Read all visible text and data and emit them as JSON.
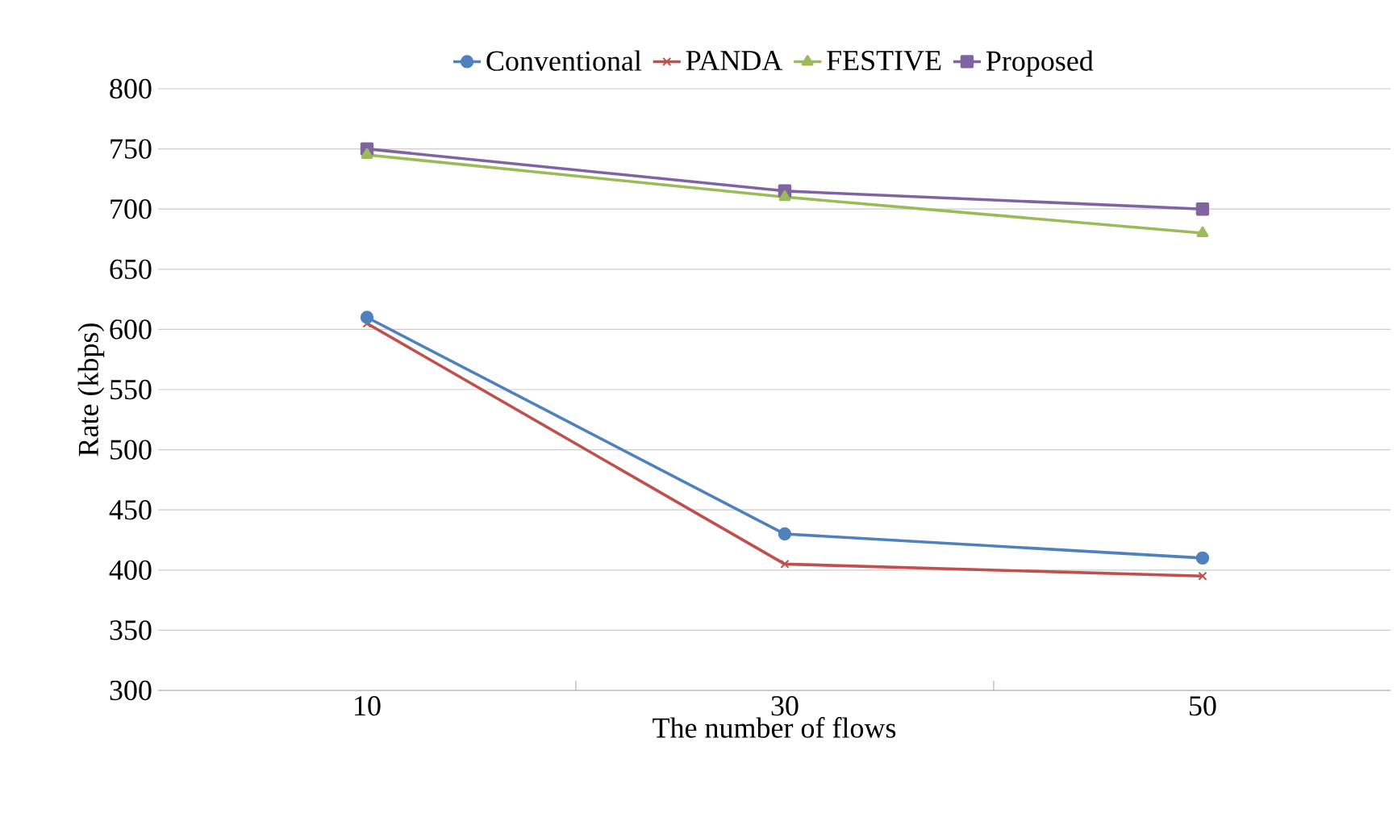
{
  "chart_data": {
    "type": "line",
    "xlabel": "The number of flows",
    "ylabel": "Rate (kbps)",
    "categories": [
      "10",
      "30",
      "50"
    ],
    "series": [
      {
        "name": "Conventional",
        "color": "#4f81bd",
        "marker": "circle",
        "values": [
          610,
          430,
          410
        ]
      },
      {
        "name": "PANDA",
        "color": "#c0504d",
        "marker": "cross",
        "values": [
          605,
          405,
          395
        ]
      },
      {
        "name": "FESTIVE",
        "color": "#9bbb59",
        "marker": "triangle",
        "values": [
          745,
          710,
          680
        ]
      },
      {
        "name": "Proposed",
        "color": "#8064a2",
        "marker": "square",
        "values": [
          750,
          715,
          700
        ]
      }
    ],
    "ylim": [
      300,
      800
    ],
    "yticks": [
      300,
      350,
      400,
      450,
      500,
      550,
      600,
      650,
      700,
      750,
      800
    ],
    "grid": "y",
    "legend": "top"
  }
}
